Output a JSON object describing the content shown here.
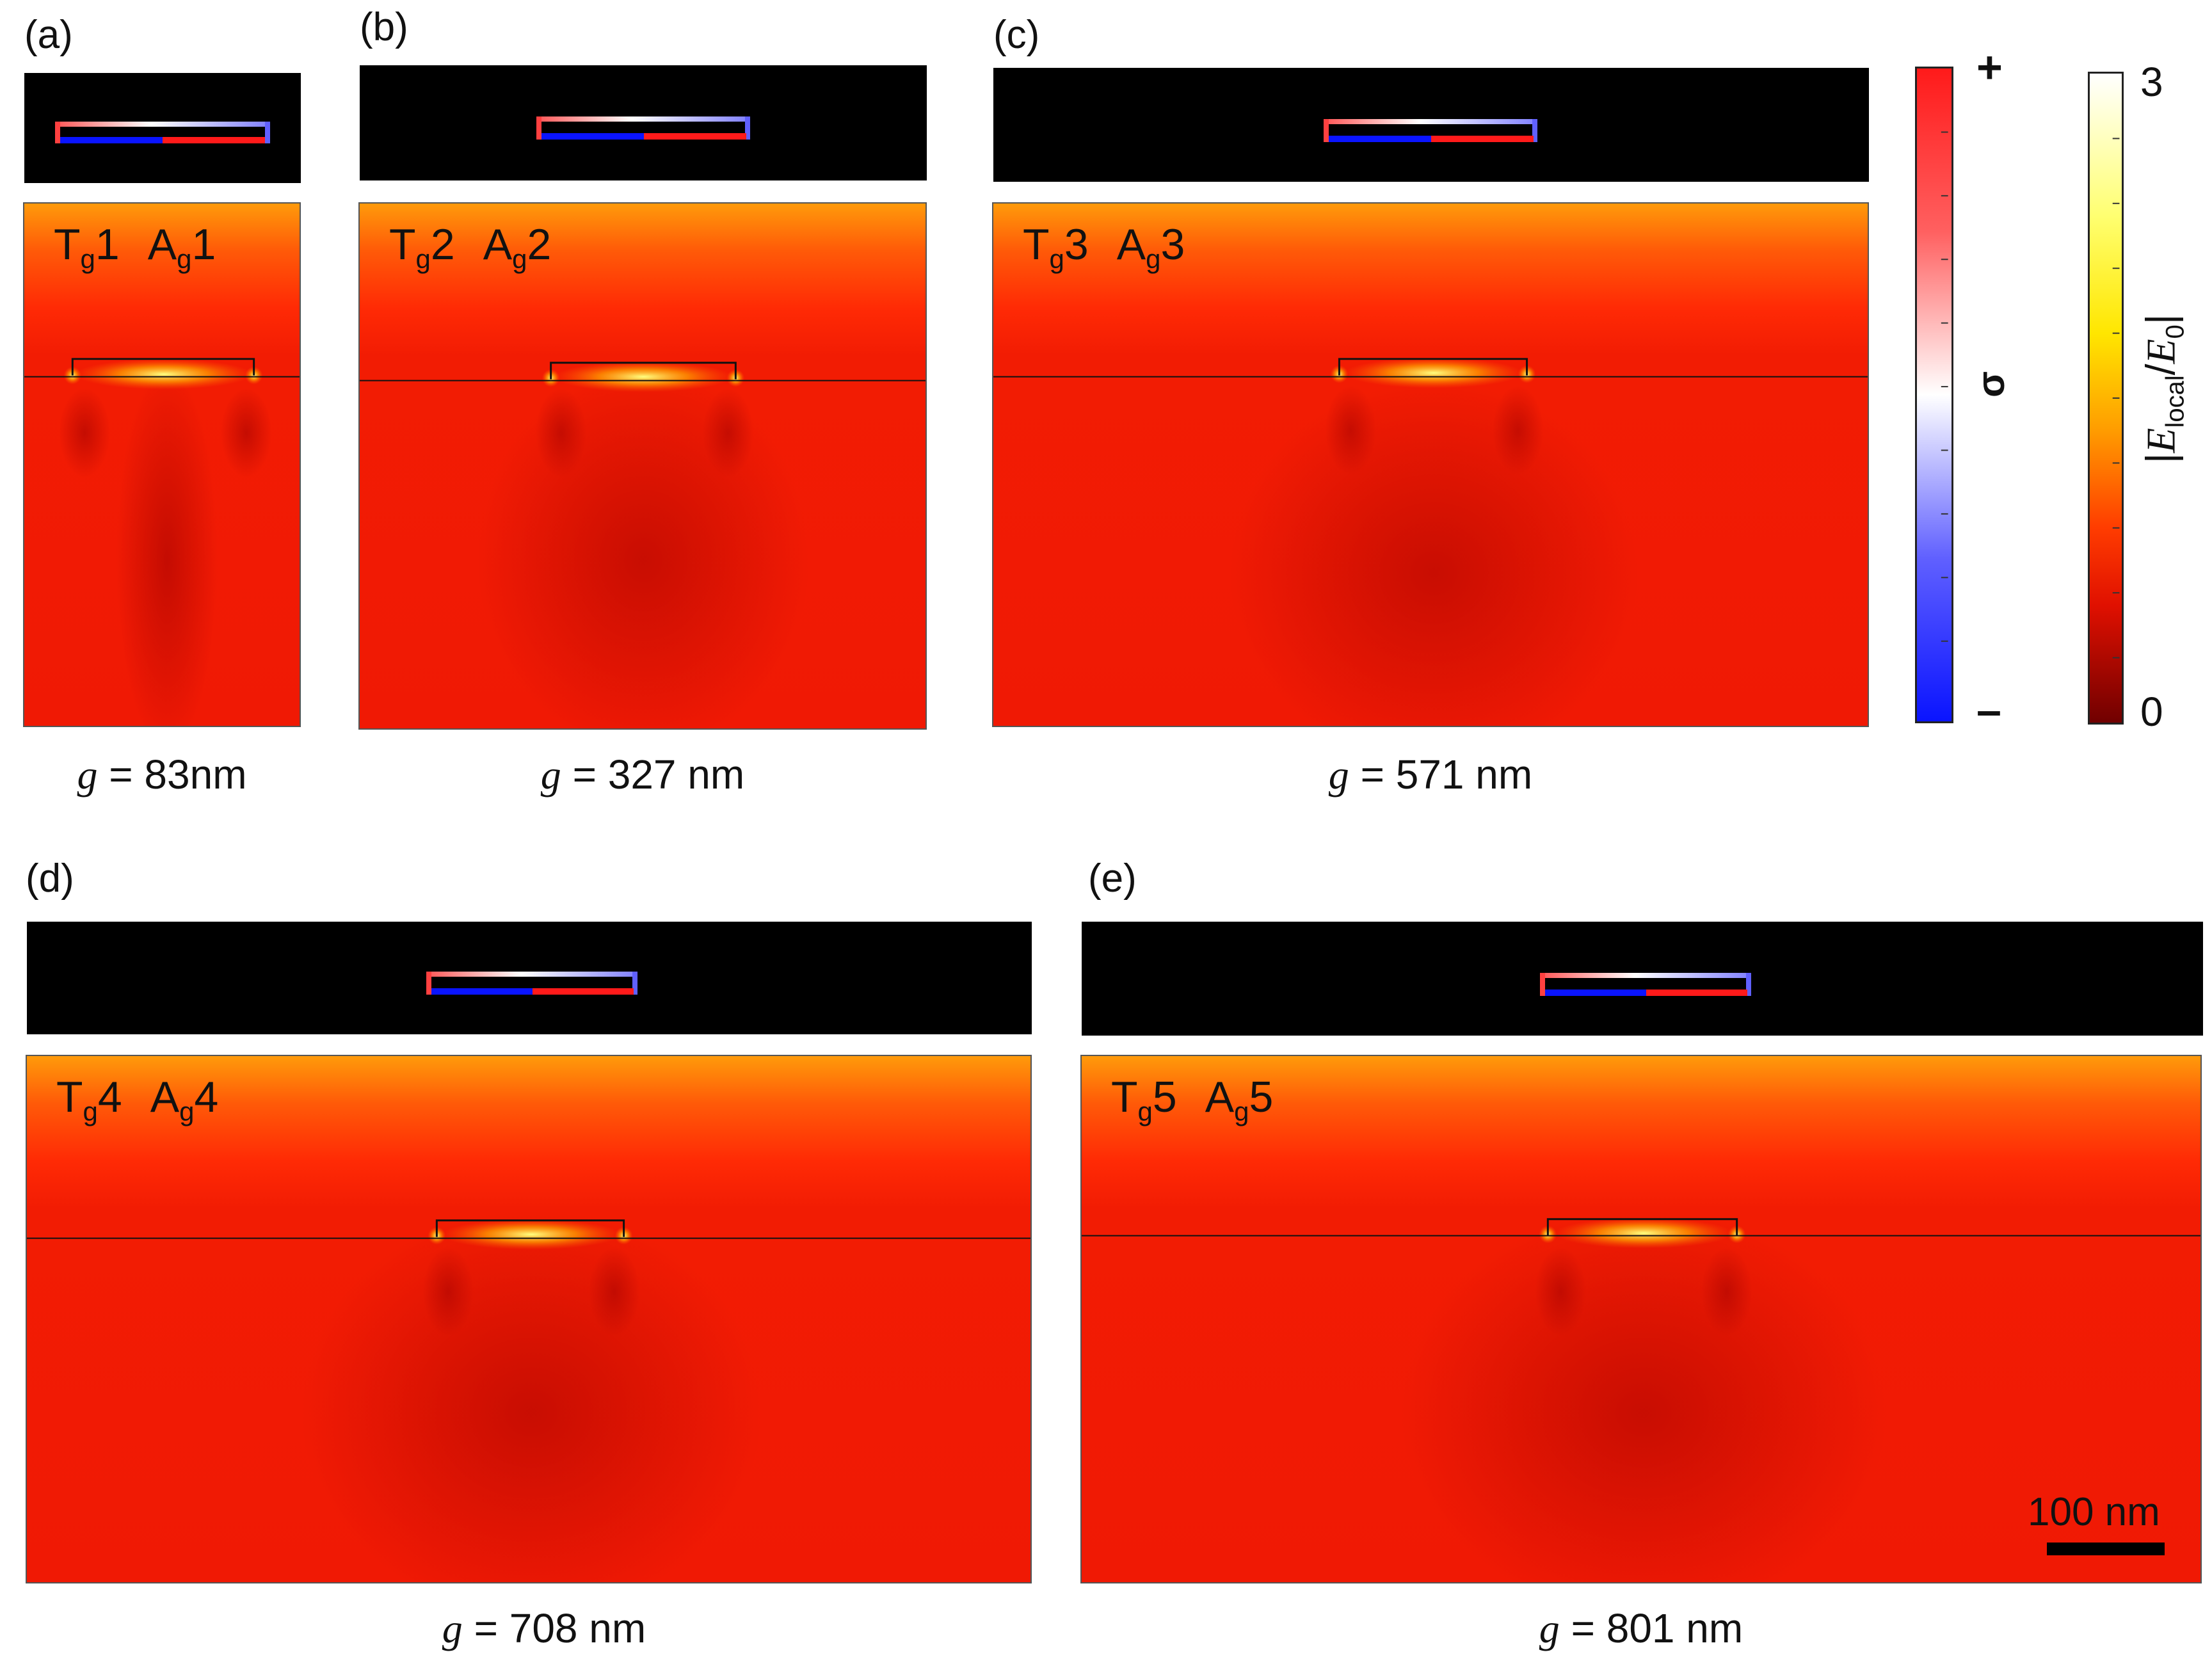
{
  "panels": [
    {
      "id": "a",
      "label": "(a)",
      "tag_t": "T",
      "tag_t_sub": "g",
      "tag_t_num": "1",
      "tag_a": "A",
      "tag_a_sub": "g",
      "tag_a_num": "1",
      "g_var": "g",
      "g_text": " = 83nm"
    },
    {
      "id": "b",
      "label": "(b)",
      "tag_t": "T",
      "tag_t_sub": "g",
      "tag_t_num": "2",
      "tag_a": "A",
      "tag_a_sub": "g",
      "tag_a_num": "2",
      "g_var": "g",
      "g_text": " = 327 nm"
    },
    {
      "id": "c",
      "label": "(c)",
      "tag_t": "T",
      "tag_t_sub": "g",
      "tag_t_num": "3",
      "tag_a": "A",
      "tag_a_sub": "g",
      "tag_a_num": "3",
      "g_var": "g",
      "g_text": " = 571 nm"
    },
    {
      "id": "d",
      "label": "(d)",
      "tag_t": "T",
      "tag_t_sub": "g",
      "tag_t_num": "4",
      "tag_a": "A",
      "tag_a_sub": "g",
      "tag_a_num": "4",
      "g_var": "g",
      "g_text": " = 708 nm"
    },
    {
      "id": "e",
      "label": "(e)",
      "tag_t": "T",
      "tag_t_sub": "g",
      "tag_t_num": "5",
      "tag_a": "A",
      "tag_a_sub": "g",
      "tag_a_num": "5",
      "g_var": "g",
      "g_text": " = 801 nm"
    }
  ],
  "colorbars": {
    "sigma": {
      "symbol": "σ",
      "max": "+",
      "min": "–",
      "top_color": "#ff1a1a",
      "mid_color": "#ffffff",
      "bottom_color": "#0a14ff"
    },
    "field": {
      "max": "3",
      "min": "0",
      "label_open": "|",
      "label_e": "E",
      "label_sub": "local",
      "label_slash": "/",
      "label_e0": "E",
      "label_sub0": "0",
      "label_close": "|",
      "top_color": "#ffffff",
      "mid_color": "#ffee00",
      "low_color": "#ff2a00",
      "bottom_color": "#7a0000"
    }
  },
  "scalebar": {
    "label": "100 nm"
  }
}
